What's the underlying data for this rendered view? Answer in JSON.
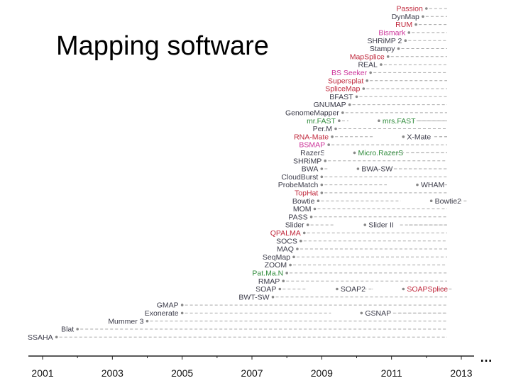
{
  "slide": {
    "title": "Mapping software",
    "ellipsis": "…"
  },
  "colors": {
    "default": "#3a3a48",
    "rna_seq": "#c0283c",
    "bisulfite": "#cc3399",
    "colorspace": "#2e8b3a",
    "line": "#a8a8a8",
    "dot": "#888888",
    "axis": "#222222"
  },
  "chart_data": {
    "type": "timeline",
    "title": "",
    "xlabel": "",
    "ylabel": "",
    "xlim": [
      2001,
      2013.4
    ],
    "x_ticks": [
      "2001",
      "2003",
      "2005",
      "2007",
      "2009",
      "2011",
      "2013"
    ],
    "grid": false,
    "tools": [
      {
        "name": "Passion",
        "year": 2012.0,
        "color": "rna_seq",
        "second": null
      },
      {
        "name": "DynMap",
        "year": 2011.9,
        "color": "default",
        "second": null
      },
      {
        "name": "RUM",
        "year": 2011.7,
        "color": "rna_seq",
        "second": null
      },
      {
        "name": "Bismark",
        "year": 2011.5,
        "color": "bisulfite",
        "second": null
      },
      {
        "name": "SHRiMP 2",
        "year": 2011.4,
        "color": "default",
        "second": null
      },
      {
        "name": "Stampy",
        "year": 2011.2,
        "color": "default",
        "second": null
      },
      {
        "name": "MapSplice",
        "year": 2010.9,
        "color": "rna_seq",
        "second": null
      },
      {
        "name": "REAL",
        "year": 2010.7,
        "color": "default",
        "second": null
      },
      {
        "name": "BS Seeker",
        "year": 2010.4,
        "color": "bisulfite",
        "second": null
      },
      {
        "name": "Supersplat",
        "year": 2010.3,
        "color": "rna_seq",
        "second": null
      },
      {
        "name": "SpliceMap",
        "year": 2010.2,
        "color": "rna_seq",
        "second": null
      },
      {
        "name": "BFAST",
        "year": 2010.0,
        "color": "default",
        "second": null
      },
      {
        "name": "GNUMAP",
        "year": 2009.8,
        "color": "default",
        "second": null
      },
      {
        "name": "GenomeMapper",
        "year": 2009.6,
        "color": "default",
        "second": null
      },
      {
        "name": "mr.FAST",
        "year": 2009.5,
        "color": "colorspace",
        "second": {
          "name": "mrs.FAST",
          "year": 2010.7,
          "color": "colorspace"
        }
      },
      {
        "name": "Per.M",
        "year": 2009.4,
        "color": "default",
        "second": null
      },
      {
        "name": "RNA-Mate",
        "year": 2009.3,
        "color": "rna_seq",
        "second": {
          "name": "X-Mate",
          "year": 2011.4,
          "color": "default"
        }
      },
      {
        "name": "BSMAP",
        "year": 2009.2,
        "color": "bisulfite",
        "second": null
      },
      {
        "name": "RazerS",
        "year": 2009.2,
        "color": "default",
        "second": {
          "name": "Micro.RazerS",
          "year": 2010.0,
          "color": "colorspace"
        }
      },
      {
        "name": "SHRiMP",
        "year": 2009.1,
        "color": "default",
        "second": null
      },
      {
        "name": "BWA",
        "year": 2009.0,
        "color": "default",
        "second": {
          "name": "BWA-SW",
          "year": 2010.1,
          "color": "default"
        }
      },
      {
        "name": "CloudBurst",
        "year": 2009.0,
        "color": "default",
        "second": null
      },
      {
        "name": "ProbeMatch",
        "year": 2009.0,
        "color": "default",
        "second": {
          "name": "WHAM",
          "year": 2011.8,
          "color": "default"
        }
      },
      {
        "name": "TopHat",
        "year": 2009.0,
        "color": "rna_seq",
        "second": null
      },
      {
        "name": "Bowtie",
        "year": 2008.9,
        "color": "default",
        "second": {
          "name": "Bowtie2",
          "year": 2012.2,
          "color": "default"
        }
      },
      {
        "name": "MOM",
        "year": 2008.8,
        "color": "default",
        "second": null
      },
      {
        "name": "PASS",
        "year": 2008.7,
        "color": "default",
        "second": null
      },
      {
        "name": "Slider",
        "year": 2008.6,
        "color": "default",
        "second": {
          "name": "Slider II",
          "year": 2010.3,
          "color": "default"
        }
      },
      {
        "name": "QPALMA",
        "year": 2008.5,
        "color": "rna_seq",
        "second": null
      },
      {
        "name": "SOCS",
        "year": 2008.4,
        "color": "default",
        "second": null
      },
      {
        "name": "MAQ",
        "year": 2008.3,
        "color": "default",
        "second": null
      },
      {
        "name": "SeqMap",
        "year": 2008.2,
        "color": "default",
        "second": null
      },
      {
        "name": "ZOOM",
        "year": 2008.1,
        "color": "default",
        "second": null
      },
      {
        "name": "Pat.Ma.N",
        "year": 2008.0,
        "color": "colorspace",
        "second": null
      },
      {
        "name": "RMAP",
        "year": 2007.9,
        "color": "default",
        "second": null
      },
      {
        "name": "SOAP",
        "year": 2007.8,
        "color": "default",
        "second": {
          "name": "SOAP2",
          "year": 2009.5,
          "color": "default",
          "third": {
            "name": "SOAPSplice",
            "year": 2011.4,
            "color": "rna_seq"
          }
        }
      },
      {
        "name": "BWT-SW",
        "year": 2007.6,
        "color": "default",
        "second": null
      },
      {
        "name": "GMAP",
        "year": 2005.0,
        "color": "default",
        "second": null
      },
      {
        "name": "Exonerate",
        "year": 2005.0,
        "color": "default",
        "second": {
          "name": "GSNAP",
          "year": 2010.2,
          "color": "default"
        }
      },
      {
        "name": "Mummer 3",
        "year": 2004.0,
        "color": "default",
        "second": null
      },
      {
        "name": "Blat",
        "year": 2002.0,
        "color": "default",
        "second": null
      },
      {
        "name": "SSAHA",
        "year": 2001.4,
        "color": "default",
        "second": null
      }
    ]
  }
}
